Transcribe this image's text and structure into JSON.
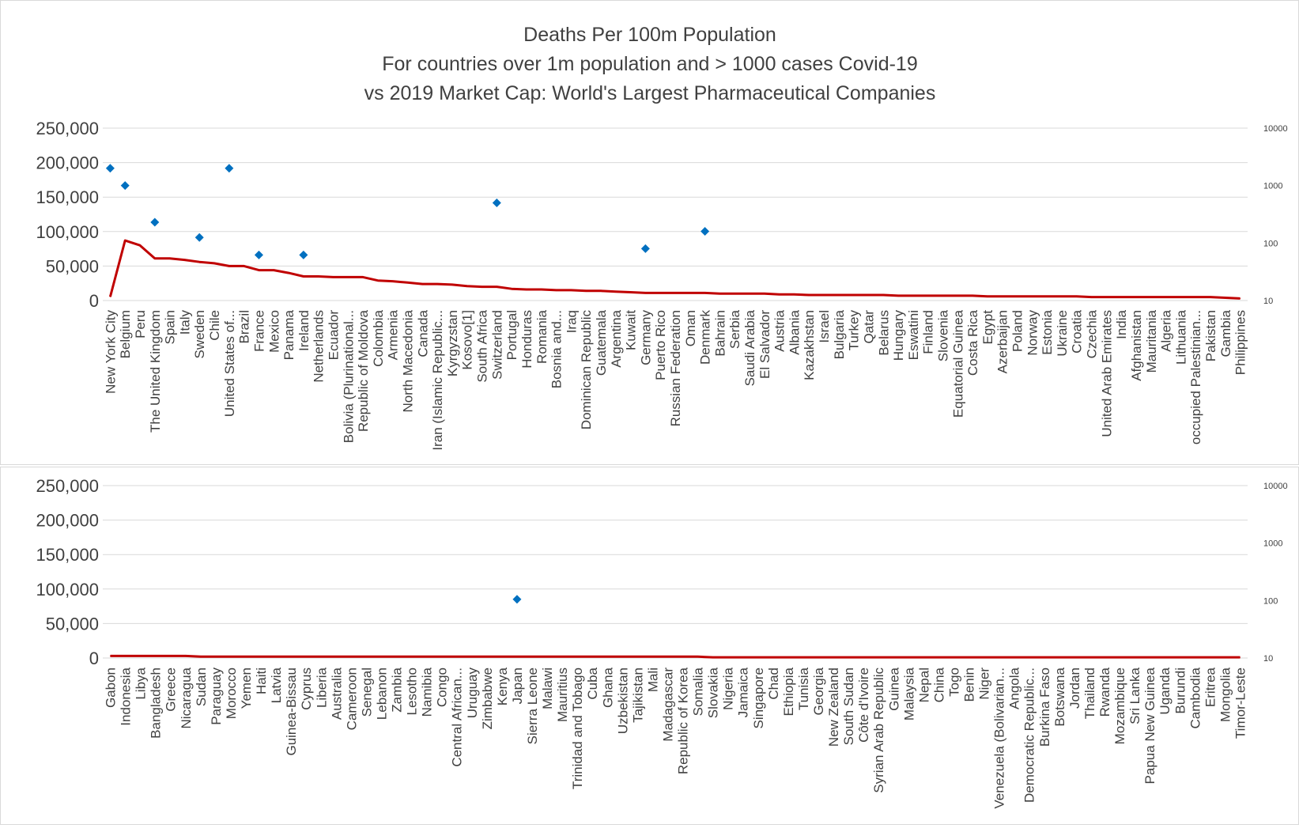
{
  "chart_data": {
    "title_lines": [
      "Deaths Per 100m Population",
      "For countries over 1m population and > 1000 cases Covid-19",
      "vs 2019 Market Cap: World's Largest Pharmaceutical Companies"
    ],
    "colors": {
      "line": "#c00000",
      "marker": "#0070c0",
      "text": "#404040",
      "grid": "#d9d9d9"
    },
    "panels": [
      {
        "type": "line+scatter",
        "left_axis": {
          "ylim": [
            0,
            250000
          ],
          "ticks": [
            "250,000",
            "200,000",
            "150,000",
            "100,000",
            "50,000",
            "0"
          ]
        },
        "right_axis": {
          "scale": "log",
          "ylim": [
            10,
            10000
          ],
          "ticks": [
            "10000",
            "1000",
            "100",
            "10"
          ]
        },
        "categories": [
          "New York City",
          "Belgium",
          "Peru",
          "The United Kingdom",
          "Spain",
          "Italy",
          "Sweden",
          "Chile",
          "United States of...",
          "Brazil",
          "France",
          "Mexico",
          "Panama",
          "Ireland",
          "Netherlands",
          "Ecuador",
          "Bolivia (Plurinational...",
          "Republic of Moldova",
          "Colombia",
          "Armenia",
          "North Macedonia",
          "Canada",
          "Iran (Islamic Republic...",
          "Kyrgyzstan",
          "Kosovo[1]",
          "South Africa",
          "Switzerland",
          "Portugal",
          "Honduras",
          "Romania",
          "Bosnia and...",
          "Iraq",
          "Dominican Republic",
          "Guatemala",
          "Argentina",
          "Kuwait",
          "Germany",
          "Puerto Rico",
          "Russian Federation",
          "Oman",
          "Denmark",
          "Bahrain",
          "Serbia",
          "Saudi Arabia",
          "El Salvador",
          "Austria",
          "Albania",
          "Kazakhstan",
          "Israel",
          "Bulgaria",
          "Turkey",
          "Qatar",
          "Belarus",
          "Hungary",
          "Eswatini",
          "Finland",
          "Slovenia",
          "Equatorial Guinea",
          "Costa Rica",
          "Egypt",
          "Azerbaijan",
          "Poland",
          "Norway",
          "Estonia",
          "Ukraine",
          "Croatia",
          "Czechia",
          "United Arab Emirates",
          "India",
          "Afghanistan",
          "Mauritania",
          "Algeria",
          "Lithuania",
          "occupied Palestinian...",
          "Pakistan",
          "Gambia",
          "Philippines"
        ],
        "deaths_per_100m": [
          5500,
          87000,
          80000,
          61000,
          61000,
          59000,
          56000,
          54000,
          50000,
          50000,
          44000,
          44000,
          40000,
          35000,
          35000,
          34000,
          34000,
          34000,
          29000,
          28000,
          26000,
          24000,
          24000,
          23000,
          21000,
          20000,
          20000,
          17000,
          16000,
          16000,
          15000,
          15000,
          14000,
          14000,
          13000,
          12000,
          11000,
          11000,
          11000,
          11000,
          11000,
          10000,
          10000,
          10000,
          10000,
          9000,
          9000,
          8000,
          8000,
          8000,
          8000,
          8000,
          8000,
          7000,
          7000,
          7000,
          7000,
          7000,
          7000,
          6000,
          6000,
          6000,
          6000,
          6000,
          6000,
          6000,
          5000,
          5000,
          5000,
          5000,
          5000,
          5000,
          5000,
          5000,
          5000,
          4000,
          3000
        ],
        "market_cap": [
          {
            "category": "New York City",
            "value": 2000
          },
          {
            "category": "Belgium",
            "value": 1000
          },
          {
            "category": "The United Kingdom",
            "value": 230
          },
          {
            "category": "Sweden",
            "value": 125
          },
          {
            "category": "United States of...",
            "value": 2000
          },
          {
            "category": "France",
            "value": 62
          },
          {
            "category": "Ireland",
            "value": 62
          },
          {
            "category": "Switzerland",
            "value": 500
          },
          {
            "category": "Germany",
            "value": 80
          },
          {
            "category": "Denmark",
            "value": 160
          }
        ]
      },
      {
        "type": "line+scatter",
        "left_axis": {
          "ylim": [
            0,
            250000
          ],
          "ticks": [
            "250,000",
            "200,000",
            "150,000",
            "100,000",
            "50,000",
            "0"
          ]
        },
        "right_axis": {
          "scale": "log",
          "ylim": [
            10,
            10000
          ],
          "ticks": [
            "10000",
            "1000",
            "100",
            "10"
          ]
        },
        "categories": [
          "Gabon",
          "Indonesia",
          "Libya",
          "Bangladesh",
          "Greece",
          "Nicaragua",
          "Sudan",
          "Paraguay",
          "Morocco",
          "Yemen",
          "Haiti",
          "Latvia",
          "Guinea-Bissau",
          "Cyprus",
          "Liberia",
          "Australia",
          "Cameroon",
          "Senegal",
          "Lebanon",
          "Zambia",
          "Lesotho",
          "Namibia",
          "Congo",
          "Central African...",
          "Uruguay",
          "Zimbabwe",
          "Kenya",
          "Japan",
          "Sierra Leone",
          "Malawi",
          "Mauritius",
          "Trinidad and Tobago",
          "Cuba",
          "Ghana",
          "Uzbekistan",
          "Tajikistan",
          "Mali",
          "Madagascar",
          "Republic of Korea",
          "Somalia",
          "Slovakia",
          "Nigeria",
          "Jamaica",
          "Singapore",
          "Chad",
          "Ethiopia",
          "Tunisia",
          "Georgia",
          "New Zealand",
          "South Sudan",
          "Côte d'Ivoire",
          "Syrian Arab Republic",
          "Guinea",
          "Malaysia",
          "Nepal",
          "China",
          "Togo",
          "Benin",
          "Niger",
          "Venezuela (Bolivarian...",
          "Angola",
          "Democratic Republic...",
          "Burkina Faso",
          "Botswana",
          "Jordan",
          "Thailand",
          "Rwanda",
          "Mozambique",
          "Sri Lanka",
          "Papua New Guinea",
          "Uganda",
          "Burundi",
          "Cambodia",
          "Eritrea",
          "Mongolia",
          "Timor-Leste"
        ],
        "deaths_per_100m": [
          3000,
          3000,
          3000,
          3000,
          3000,
          3000,
          2000,
          2000,
          2000,
          2000,
          2000,
          2000,
          2000,
          2000,
          2000,
          2000,
          2000,
          2000,
          2000,
          2000,
          2000,
          2000,
          2000,
          2000,
          2000,
          2000,
          2000,
          2000,
          2000,
          2000,
          2000,
          2000,
          2000,
          2000,
          2000,
          2000,
          2000,
          2000,
          2000,
          2000,
          1000,
          1000,
          1000,
          1000,
          1000,
          1000,
          1000,
          1000,
          1000,
          1000,
          1000,
          1000,
          1000,
          1000,
          1000,
          1000,
          1000,
          1000,
          1000,
          1000,
          1000,
          1000,
          1000,
          1000,
          1000,
          1000,
          1000,
          1000,
          1000,
          1000,
          1000,
          1000,
          1000,
          1000,
          1000,
          1000
        ],
        "market_cap": [
          {
            "category": "Japan",
            "value": 105
          }
        ]
      }
    ]
  }
}
